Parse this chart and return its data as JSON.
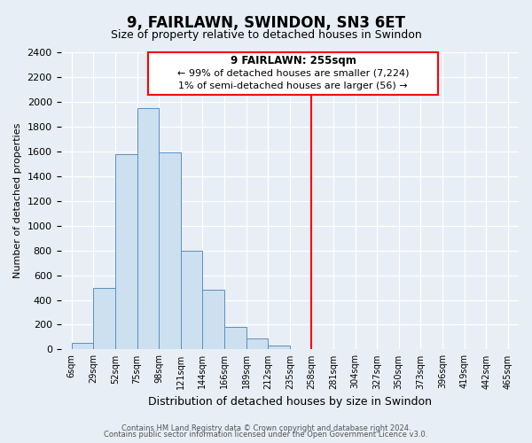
{
  "title": "9, FAIRLAWN, SWINDON, SN3 6ET",
  "subtitle": "Size of property relative to detached houses in Swindon",
  "xlabel": "Distribution of detached houses by size in Swindon",
  "ylabel": "Number of detached properties",
  "bin_labels": [
    "6sqm",
    "29sqm",
    "52sqm",
    "75sqm",
    "98sqm",
    "121sqm",
    "144sqm",
    "166sqm",
    "189sqm",
    "212sqm",
    "235sqm",
    "258sqm",
    "281sqm",
    "304sqm",
    "327sqm",
    "350sqm",
    "373sqm",
    "396sqm",
    "419sqm",
    "442sqm",
    "465sqm"
  ],
  "bar_heights": [
    50,
    500,
    1580,
    1950,
    1590,
    800,
    480,
    185,
    90,
    35,
    0,
    0,
    0,
    0,
    0,
    0,
    0,
    0,
    0,
    0
  ],
  "bar_color": "#cce0f0",
  "bar_edge_color": "#5a8fc0",
  "vline_color": "red",
  "vline_x_index": 11.0,
  "annotation_title": "9 FAIRLAWN: 255sqm",
  "annotation_line1": "← 99% of detached houses are smaller (7,224)",
  "annotation_line2": "1% of semi-detached houses are larger (56) →",
  "ylim": [
    0,
    2400
  ],
  "yticks": [
    0,
    200,
    400,
    600,
    800,
    1000,
    1200,
    1400,
    1600,
    1800,
    2000,
    2200,
    2400
  ],
  "footnote1": "Contains HM Land Registry data © Crown copyright and database right 2024.",
  "footnote2": "Contains public sector information licensed under the Open Government Licence v3.0.",
  "bg_color": "#e8eef5",
  "plot_bg_color": "#e8eef5"
}
